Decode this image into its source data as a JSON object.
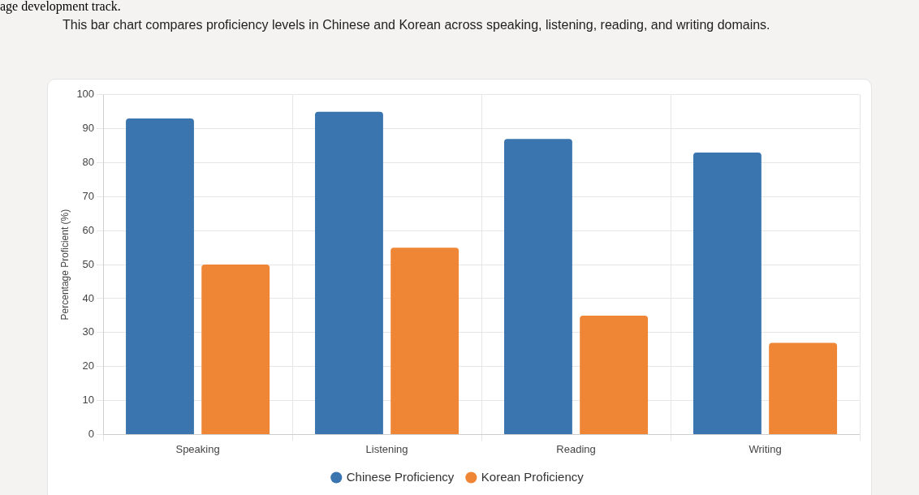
{
  "chart_data": {
    "type": "bar",
    "subtitle": "This bar chart compares proficiency levels in Chinese and Korean across speaking, listening, reading, and writing domains.",
    "annotations": [
      "age development track."
    ],
    "ylabel": "Percentage Proficient (%)",
    "categories": [
      "Speaking",
      "Listening",
      "Reading",
      "Writing"
    ],
    "series": [
      {
        "name": "Chinese Proficiency",
        "color": "#3b75af",
        "values": [
          93,
          95,
          87,
          83
        ]
      },
      {
        "name": "Korean Proficiency",
        "color": "#ef8636",
        "values": [
          50,
          55,
          35,
          27
        ]
      }
    ],
    "ylim": [
      0,
      100
    ],
    "yticks": [
      0,
      10,
      20,
      30,
      40,
      50,
      60,
      70,
      80,
      90,
      100
    ],
    "grid": true,
    "legend": "bottom"
  }
}
